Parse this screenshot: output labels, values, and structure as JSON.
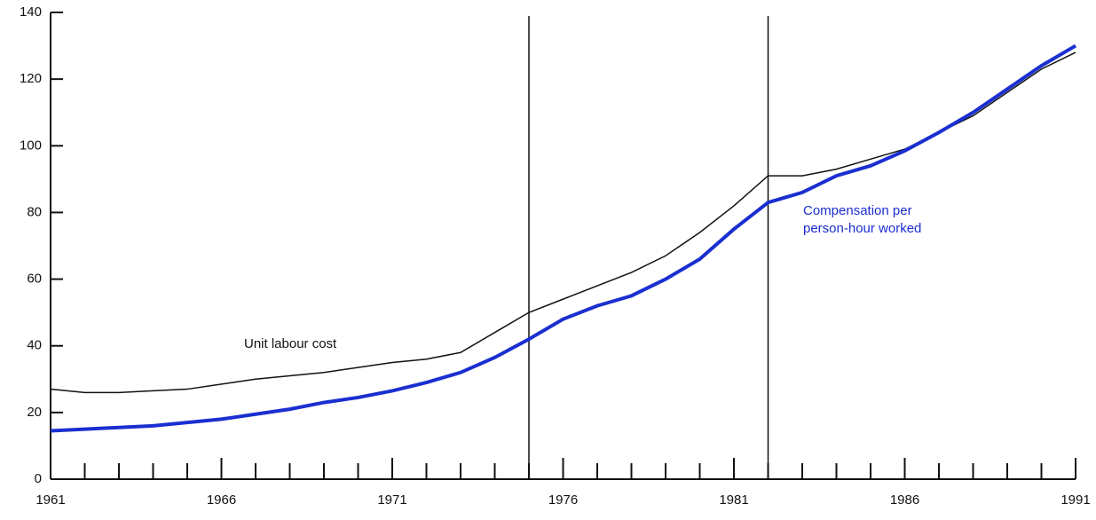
{
  "chart_data": {
    "type": "line",
    "x": [
      1961,
      1962,
      1963,
      1964,
      1965,
      1966,
      1967,
      1968,
      1969,
      1970,
      1971,
      1972,
      1973,
      1974,
      1975,
      1976,
      1977,
      1978,
      1979,
      1980,
      1981,
      1982,
      1983,
      1984,
      1985,
      1986,
      1987,
      1988,
      1989,
      1990,
      1991
    ],
    "series": [
      {
        "name": "Unit labour cost",
        "color": "#111111",
        "values": [
          27,
          26,
          26,
          26.5,
          27,
          28.5,
          30,
          31,
          32,
          33.5,
          35,
          36,
          38,
          44,
          50,
          54,
          58,
          62,
          67,
          74,
          82,
          91,
          91,
          93,
          96,
          99,
          104,
          109,
          116,
          123,
          128
        ]
      },
      {
        "name": "Compensation per person-hour worked",
        "color": "#1a2fd0",
        "values": [
          14.5,
          15,
          15.5,
          16,
          17,
          18,
          19.5,
          21,
          23,
          24.5,
          26.5,
          29,
          32,
          36.5,
          42,
          48,
          52,
          55,
          60,
          66,
          75,
          83,
          86,
          91,
          94,
          98.5,
          104,
          110,
          117,
          124,
          130
        ]
      }
    ],
    "xlim": [
      1961,
      1991
    ],
    "xticks": [
      1961,
      1966,
      1971,
      1976,
      1981,
      1986,
      1991
    ],
    "x_minor_ticks": [
      1962,
      1963,
      1964,
      1965,
      1967,
      1968,
      1969,
      1970,
      1972,
      1973,
      1974,
      1975,
      1977,
      1978,
      1979,
      1980,
      1982,
      1983,
      1984,
      1985,
      1987,
      1988,
      1989,
      1990
    ],
    "ylim": [
      0,
      140
    ],
    "yticks": [
      0,
      20,
      40,
      60,
      80,
      100,
      120,
      140
    ],
    "vlines": [
      1975,
      1982
    ],
    "grid": false
  }
}
